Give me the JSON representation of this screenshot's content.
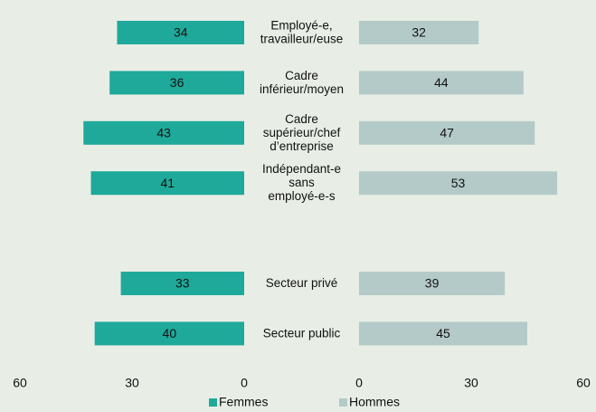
{
  "chart_data": {
    "type": "butterfly",
    "categories": [
      "Employé-e,\ntravailleur/euse",
      "Cadre\ninférieur/moyen",
      "Cadre\nsupérieur/chef\nd’entreprise",
      "Indépendant-e\nsans\nemployé-e-s",
      null,
      "Secteur privé",
      "Secteur public"
    ],
    "series": [
      {
        "name": "Femmes",
        "color": "#1fa99a",
        "values": [
          34,
          36,
          43,
          41,
          null,
          33,
          40
        ]
      },
      {
        "name": "Hommes",
        "color": "#b4cac8",
        "values": [
          32,
          44,
          47,
          53,
          null,
          39,
          45
        ]
      }
    ],
    "xlim": [
      0,
      60
    ],
    "xticks": [
      0,
      30,
      60
    ],
    "legend": "bottom"
  }
}
